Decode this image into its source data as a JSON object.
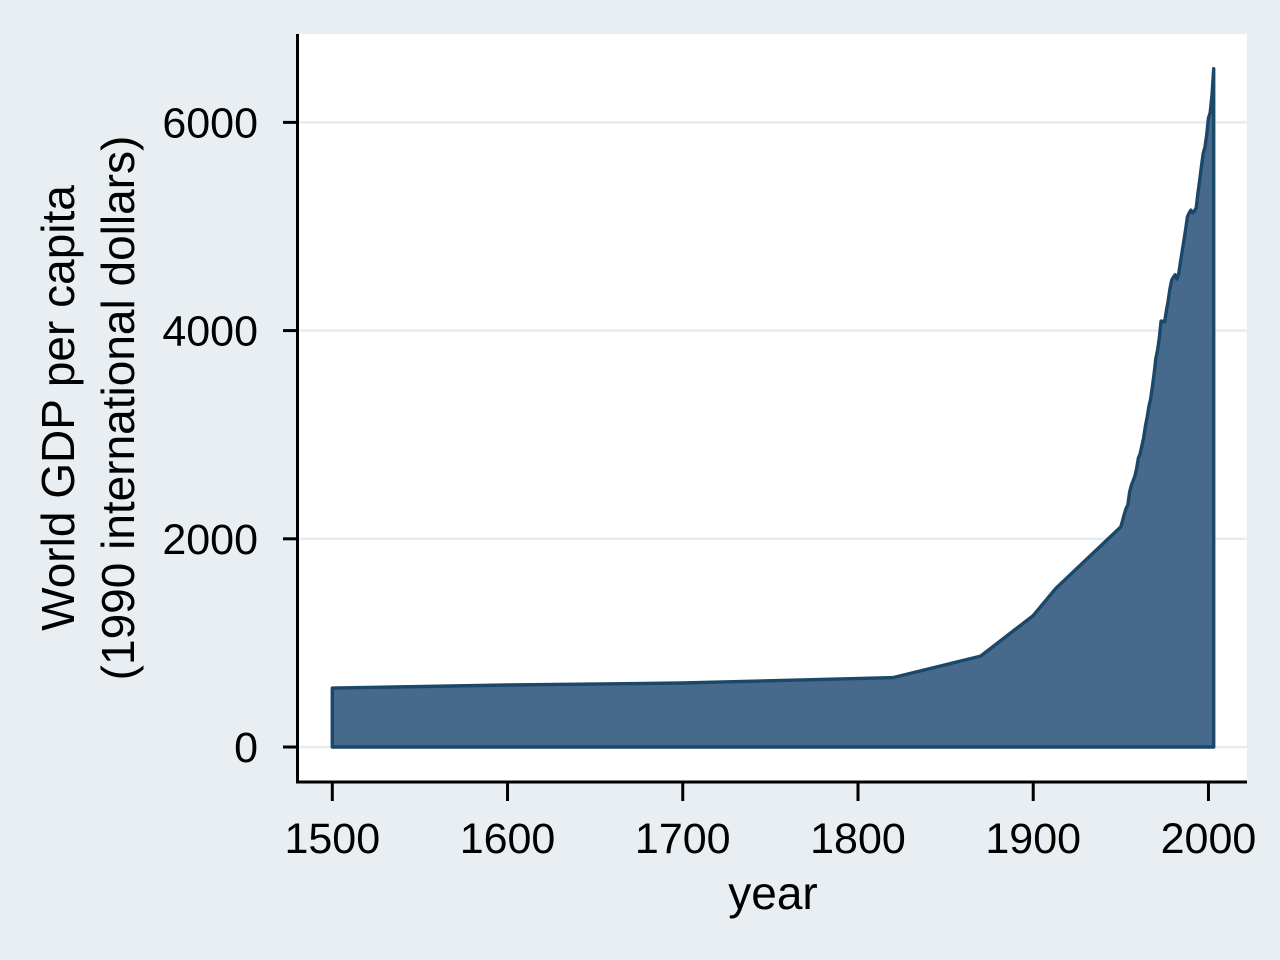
{
  "chart_data": {
    "type": "area",
    "title": "",
    "xlabel": "year",
    "ylabel_lines": [
      "World GDP per capita",
      "(1990 international dollars)"
    ],
    "series_name": "World GDP per capita (1990 international dollars)",
    "x": [
      1500,
      1600,
      1700,
      1820,
      1870,
      1900,
      1913,
      1950,
      1951,
      1952,
      1953,
      1954,
      1955,
      1956,
      1957,
      1958,
      1959,
      1960,
      1961,
      1962,
      1963,
      1964,
      1965,
      1966,
      1967,
      1968,
      1969,
      1970,
      1971,
      1972,
      1973,
      1974,
      1975,
      1976,
      1977,
      1978,
      1979,
      1980,
      1981,
      1982,
      1983,
      1984,
      1985,
      1986,
      1987,
      1988,
      1989,
      1990,
      1991,
      1992,
      1993,
      1994,
      1995,
      1996,
      1997,
      1998,
      1999,
      2000,
      2001,
      2002,
      2003
    ],
    "y": [
      566,
      596,
      615,
      667,
      873,
      1262,
      1526,
      2114,
      2175,
      2237,
      2292,
      2323,
      2448,
      2512,
      2556,
      2603,
      2672,
      2777,
      2815,
      2893,
      2968,
      3083,
      3164,
      3271,
      3342,
      3462,
      3586,
      3736,
      3816,
      3937,
      4091,
      4089,
      4084,
      4192,
      4281,
      4399,
      4485,
      4512,
      4536,
      4497,
      4545,
      4654,
      4764,
      4864,
      4977,
      5093,
      5131,
      5157,
      5132,
      5145,
      5180,
      5317,
      5444,
      5574,
      5703,
      5759,
      5882,
      6038,
      6094,
      6262,
      6516
    ],
    "baseline": 0,
    "xticks": [
      1500,
      1600,
      1700,
      1800,
      1900,
      2000
    ],
    "yticks": [
      0,
      2000,
      4000,
      6000
    ],
    "xlim": [
      1481,
      2022
    ],
    "ylim": [
      -336,
      6849
    ],
    "grid": true,
    "legend": "none",
    "colors": {
      "area_fill": "#47698c",
      "area_stroke": "#1b4768",
      "plot_bg": "#ffffff",
      "outer_bg": "#e8eef1",
      "grid": "#e4edf1",
      "axis": "#000000",
      "text": "#000000"
    }
  }
}
